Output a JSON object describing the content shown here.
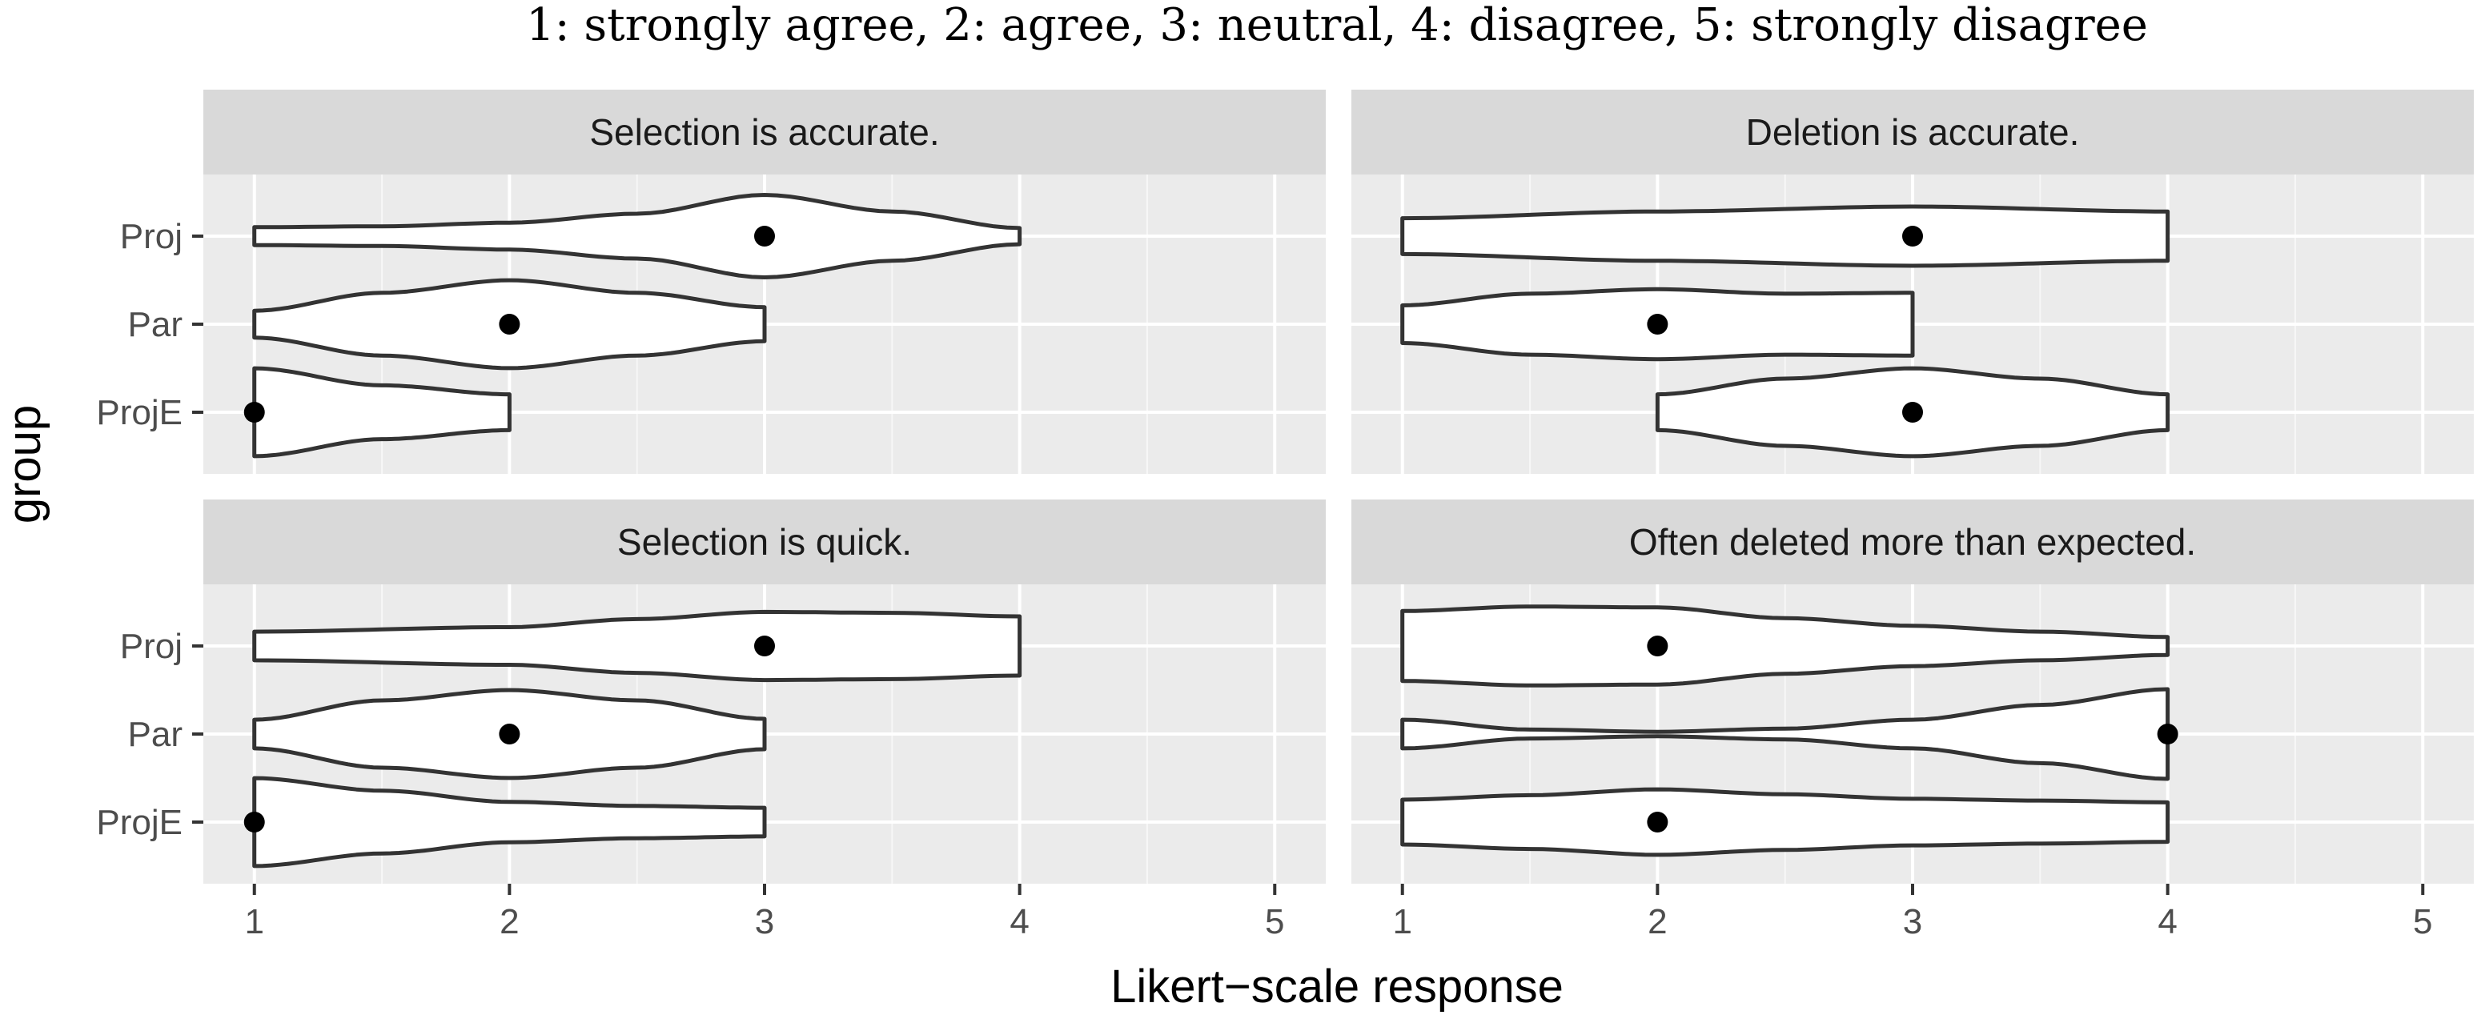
{
  "chart_data": {
    "type": "violin",
    "title": "1: strongly agree, 2: agree, 3: neutral, 4: disagree, 5: strongly disagree",
    "xlabel": "Likert−scale response",
    "ylabel": "group",
    "xlim": [
      0.8,
      5.2
    ],
    "x_ticks": [
      "1",
      "2",
      "3",
      "4",
      "5"
    ],
    "groups": [
      "Proj",
      "Par",
      "ProjE"
    ],
    "grid": true,
    "colors": {
      "panel_bg": "#ebebeb",
      "strip_bg": "#d9d9d9",
      "grid": "#ffffff",
      "violin_fill": "#ffffff",
      "violin_stroke": "#333333",
      "point": "#000000"
    },
    "panels": [
      {
        "label": "Selection is accurate.",
        "violins": [
          {
            "group": "Proj",
            "range": [
              1,
              4
            ],
            "median": 3,
            "profile": [
              [
                1,
                0.2
              ],
              [
                1.5,
                0.22
              ],
              [
                2,
                0.3
              ],
              [
                2.5,
                0.5
              ],
              [
                3,
                0.92
              ],
              [
                3.5,
                0.55
              ],
              [
                4,
                0.18
              ]
            ]
          },
          {
            "group": "Par",
            "range": [
              1,
              3
            ],
            "median": 2,
            "profile": [
              [
                1,
                0.3
              ],
              [
                1.5,
                0.7
              ],
              [
                2,
                0.98
              ],
              [
                2.5,
                0.7
              ],
              [
                3,
                0.38
              ]
            ]
          },
          {
            "group": "ProjE",
            "range": [
              1,
              2
            ],
            "median": 1,
            "profile": [
              [
                1,
                0.98
              ],
              [
                1.5,
                0.6
              ],
              [
                2,
                0.4
              ]
            ]
          }
        ]
      },
      {
        "label": "Deletion is accurate.",
        "violins": [
          {
            "group": "Proj",
            "range": [
              1,
              4
            ],
            "median": 3,
            "profile": [
              [
                1,
                0.4
              ],
              [
                2,
                0.55
              ],
              [
                3,
                0.66
              ],
              [
                4,
                0.55
              ]
            ]
          },
          {
            "group": "Par",
            "range": [
              1,
              3
            ],
            "median": 2,
            "profile": [
              [
                1,
                0.42
              ],
              [
                1.5,
                0.68
              ],
              [
                2,
                0.78
              ],
              [
                2.5,
                0.68
              ],
              [
                3,
                0.7
              ]
            ]
          },
          {
            "group": "ProjE",
            "range": [
              2,
              4
            ],
            "median": 3,
            "profile": [
              [
                2,
                0.4
              ],
              [
                2.5,
                0.75
              ],
              [
                3,
                0.98
              ],
              [
                3.5,
                0.75
              ],
              [
                4,
                0.4
              ]
            ]
          }
        ]
      },
      {
        "label": "Selection is quick.",
        "violins": [
          {
            "group": "Proj",
            "range": [
              1,
              4
            ],
            "median": 3,
            "profile": [
              [
                1,
                0.32
              ],
              [
                2,
                0.42
              ],
              [
                2.5,
                0.6
              ],
              [
                3,
                0.76
              ],
              [
                3.5,
                0.74
              ],
              [
                4,
                0.66
              ]
            ]
          },
          {
            "group": "Par",
            "range": [
              1,
              3
            ],
            "median": 2,
            "profile": [
              [
                1,
                0.32
              ],
              [
                1.5,
                0.75
              ],
              [
                2,
                0.98
              ],
              [
                2.5,
                0.75
              ],
              [
                3,
                0.34
              ]
            ]
          },
          {
            "group": "ProjE",
            "range": [
              1,
              3
            ],
            "median": 1,
            "profile": [
              [
                1,
                0.98
              ],
              [
                1.5,
                0.7
              ],
              [
                2,
                0.45
              ],
              [
                2.5,
                0.36
              ],
              [
                3,
                0.32
              ]
            ]
          }
        ]
      },
      {
        "label": "Often deleted more than expected.",
        "violins": [
          {
            "group": "Proj",
            "range": [
              1,
              4
            ],
            "median": 2,
            "profile": [
              [
                1,
                0.78
              ],
              [
                1.5,
                0.88
              ],
              [
                2,
                0.86
              ],
              [
                2.5,
                0.62
              ],
              [
                3,
                0.45
              ],
              [
                3.5,
                0.32
              ],
              [
                4,
                0.2
              ]
            ]
          },
          {
            "group": "Par",
            "range": [
              1,
              4
            ],
            "median": 4,
            "profile": [
              [
                1,
                0.32
              ],
              [
                1.5,
                0.1
              ],
              [
                2,
                0.05
              ],
              [
                2.5,
                0.12
              ],
              [
                3,
                0.32
              ],
              [
                3.5,
                0.65
              ],
              [
                4,
                1.0
              ]
            ]
          },
          {
            "group": "ProjE",
            "range": [
              1,
              4
            ],
            "median": 2,
            "profile": [
              [
                1,
                0.5
              ],
              [
                1.5,
                0.6
              ],
              [
                2,
                0.73
              ],
              [
                2.5,
                0.62
              ],
              [
                3,
                0.52
              ],
              [
                3.5,
                0.48
              ],
              [
                4,
                0.44
              ]
            ]
          }
        ]
      }
    ]
  }
}
